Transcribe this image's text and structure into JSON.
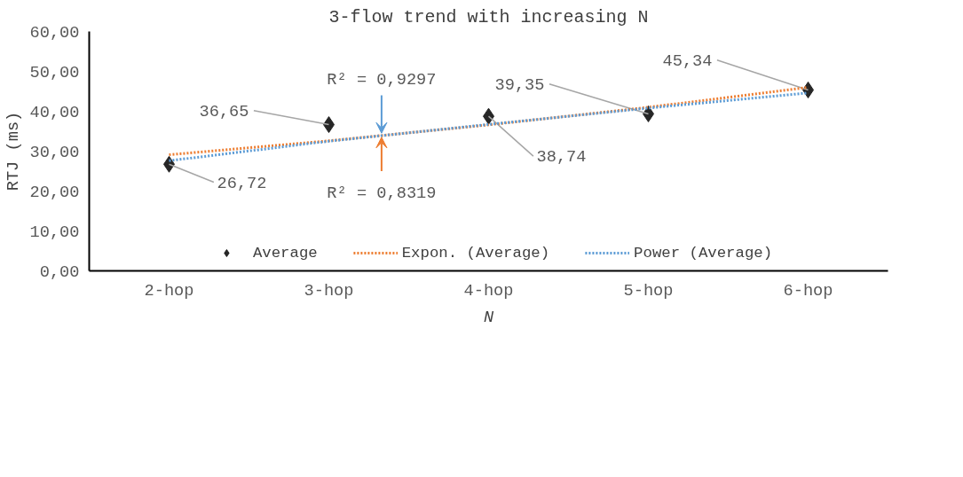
{
  "chart_data": {
    "type": "line",
    "title": "3-flow trend with increasing N",
    "xlabel": "N",
    "ylabel": "RTJ (ms)",
    "categories": [
      "2-hop",
      "3-hop",
      "4-hop",
      "5-hop",
      "6-hop"
    ],
    "series": [
      {
        "name": "Average",
        "type": "scatter",
        "marker": "diamond",
        "color": "#262626",
        "values": [
          26.72,
          36.65,
          38.74,
          39.35,
          45.34
        ],
        "value_labels": [
          "26,72",
          "36,65",
          "38,74",
          "39,35",
          "45,34"
        ]
      },
      {
        "name": "Expon. (Average)",
        "type": "line",
        "line_style": "dotted",
        "color": "#ed7d31",
        "values": [
          29.1,
          32.6,
          36.6,
          41.0,
          46.0
        ]
      },
      {
        "name": "Power (Average)",
        "type": "line",
        "line_style": "dotted",
        "color": "#5b9bd5",
        "values": [
          27.6,
          32.5,
          36.7,
          40.8,
          44.6
        ]
      }
    ],
    "ylim": [
      0,
      60
    ],
    "yticks": [
      {
        "value": 0,
        "label": "0,00"
      },
      {
        "value": 10,
        "label": "10,00"
      },
      {
        "value": 20,
        "label": "20,00"
      },
      {
        "value": 30,
        "label": "30,00"
      },
      {
        "value": 40,
        "label": "40,00"
      },
      {
        "value": 50,
        "label": "50,00"
      },
      {
        "value": 60,
        "label": "60,00"
      }
    ],
    "annotations": [
      {
        "text": "R² = 0,9297",
        "y": 34.5
      },
      {
        "text": "R² = 0,8319",
        "y": 33.5
      }
    ],
    "grid": false,
    "legend": "bottom"
  }
}
